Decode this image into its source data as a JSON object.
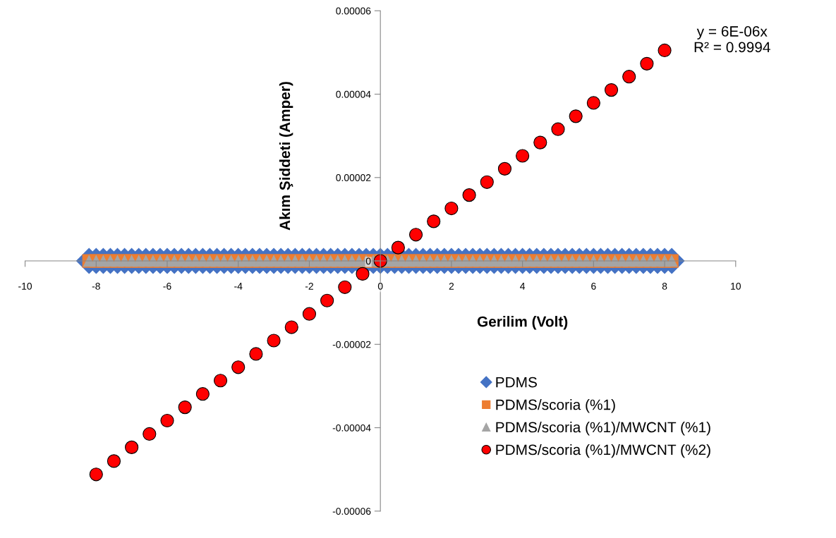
{
  "chart_data": {
    "type": "scatter",
    "xlabel": "Gerilim (Volt)",
    "ylabel": "Akım Şiddeti (Amper)",
    "xlim": [
      -10,
      10
    ],
    "xticks": [
      -10,
      -8,
      -6,
      -4,
      -2,
      0,
      2,
      4,
      6,
      8,
      10
    ],
    "ylim": [
      -6e-05,
      6e-05
    ],
    "yticks": [
      {
        "value": -6e-05,
        "label": "-0.00006"
      },
      {
        "value": -4e-05,
        "label": "-0.00004"
      },
      {
        "value": -2e-05,
        "label": "-0.00002"
      },
      {
        "value": 0,
        "label": "0"
      },
      {
        "value": 2e-05,
        "label": "0.00002"
      },
      {
        "value": 4e-05,
        "label": "0.00004"
      },
      {
        "value": 6e-05,
        "label": "0.00006"
      }
    ],
    "x": [
      -8.2,
      -8.0,
      -7.8,
      -7.6,
      -7.4,
      -7.2,
      -7.0,
      -6.8,
      -6.6,
      -6.4,
      -6.2,
      -6.0,
      -5.8,
      -5.6,
      -5.4,
      -5.2,
      -5.0,
      -4.8,
      -4.6,
      -4.4,
      -4.2,
      -4.0,
      -3.8,
      -3.6,
      -3.4,
      -3.2,
      -3.0,
      -2.8,
      -2.6,
      -2.4,
      -2.2,
      -2.0,
      -1.8,
      -1.6,
      -1.4,
      -1.2,
      -1.0,
      -0.8,
      -0.6,
      -0.4,
      -0.2,
      0.0,
      0.2,
      0.4,
      0.6,
      0.8,
      1.0,
      1.2,
      1.4,
      1.6,
      1.8,
      2.0,
      2.2,
      2.4,
      2.6,
      2.8,
      3.0,
      3.2,
      3.4,
      3.6,
      3.8,
      4.0,
      4.2,
      4.4,
      4.6,
      4.8,
      5.0,
      5.2,
      5.4,
      5.6,
      5.8,
      6.0,
      6.2,
      6.4,
      6.6,
      6.8,
      7.0,
      7.2,
      7.4,
      7.6,
      7.8,
      8.0,
      8.2
    ],
    "series": [
      {
        "name": "PDMS",
        "color": "#4472c4",
        "marker": "diamond",
        "values": [
          0,
          0,
          0,
          0,
          0,
          0,
          0,
          0,
          0,
          0,
          0,
          0,
          0,
          0,
          0,
          0,
          0,
          0,
          0,
          0,
          0,
          0,
          0,
          0,
          0,
          0,
          0,
          0,
          0,
          0,
          0,
          0,
          0,
          0,
          0,
          0,
          0,
          0,
          0,
          0,
          0,
          0,
          0,
          0,
          0,
          0,
          0,
          0,
          0,
          0,
          0,
          0,
          0,
          0,
          0,
          0,
          0,
          0,
          0,
          0,
          0,
          0,
          0,
          0,
          0,
          0,
          0,
          0,
          0,
          0,
          0,
          0,
          0,
          0,
          0,
          0,
          0,
          0,
          0,
          0,
          0,
          0,
          0
        ]
      },
      {
        "name": "PDMS/scoria (%1)",
        "color": "#ed7d31",
        "marker": "square",
        "values": [
          0,
          0,
          0,
          0,
          0,
          0,
          0,
          0,
          0,
          0,
          0,
          0,
          0,
          0,
          0,
          0,
          0,
          0,
          0,
          0,
          0,
          0,
          0,
          0,
          0,
          0,
          0,
          0,
          0,
          0,
          0,
          0,
          0,
          0,
          0,
          0,
          0,
          0,
          0,
          0,
          0,
          0,
          0,
          0,
          0,
          0,
          0,
          0,
          0,
          0,
          0,
          0,
          0,
          0,
          0,
          0,
          0,
          0,
          0,
          0,
          0,
          0,
          0,
          0,
          0,
          0,
          0,
          0,
          0,
          0,
          0,
          0,
          0,
          0,
          0,
          0,
          0,
          0,
          0,
          0,
          0,
          0,
          0
        ]
      },
      {
        "name": "PDMS/scoria (%1)/MWCNT (%1)",
        "color": "#a5a5a5",
        "marker": "triangle",
        "values": [
          0,
          0,
          0,
          0,
          0,
          0,
          0,
          0,
          0,
          0,
          0,
          0,
          0,
          0,
          0,
          0,
          0,
          0,
          0,
          0,
          0,
          0,
          0,
          0,
          0,
          0,
          0,
          0,
          0,
          0,
          0,
          0,
          0,
          0,
          0,
          0,
          0,
          0,
          0,
          0,
          0,
          0,
          0,
          0,
          0,
          0,
          0,
          0,
          0,
          0,
          0,
          0,
          0,
          0,
          0,
          0,
          0,
          0,
          0,
          0,
          0,
          0,
          0,
          0,
          0,
          0,
          0,
          0,
          0,
          0,
          0,
          0,
          0,
          0,
          0,
          0,
          0,
          0,
          0,
          0,
          0,
          0,
          0
        ]
      },
      {
        "name": "PDMS/scoria (%1)/MWCNT (%2)",
        "color": "#ff0000",
        "marker": "circle",
        "x": [
          -8,
          -7.5,
          -7,
          -6.5,
          -6,
          -5.5,
          -5,
          -4.5,
          -4,
          -3.5,
          -3,
          -2.5,
          -2,
          -1.5,
          -1,
          -0.5,
          0,
          0.5,
          1,
          1.5,
          2,
          2.5,
          3,
          3.5,
          4,
          4.5,
          5,
          5.5,
          6,
          6.5,
          7,
          7.5,
          8
        ],
        "values": [
          -5.12e-05,
          -4.8e-05,
          -4.47e-05,
          -4.15e-05,
          -3.83e-05,
          -3.51e-05,
          -3.19e-05,
          -2.87e-05,
          -2.55e-05,
          -2.23e-05,
          -1.91e-05,
          -1.59e-05,
          -1.27e-05,
          -9.5e-06,
          -6.3e-06,
          -3.1e-06,
          0,
          3.2e-06,
          6.3e-06,
          9.5e-06,
          1.26e-05,
          1.58e-05,
          1.89e-05,
          2.21e-05,
          2.52e-05,
          2.84e-05,
          3.16e-05,
          3.47e-05,
          3.79e-05,
          4.1e-05,
          4.42e-05,
          4.73e-05,
          5.05e-05
        ]
      }
    ],
    "annotations": [
      "y = 6E-06x\nR² = 0.9994"
    ],
    "legend": "bottom right",
    "grid": false
  }
}
